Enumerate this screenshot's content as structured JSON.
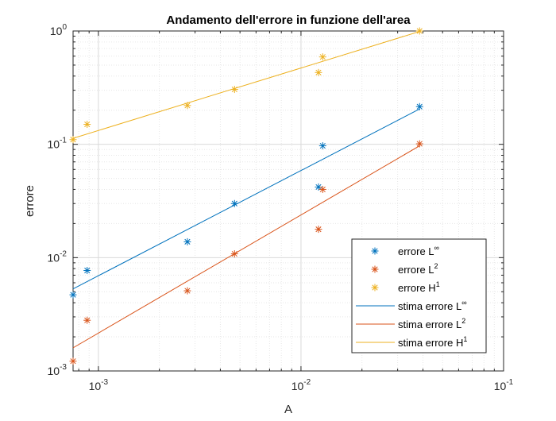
{
  "chart_data": {
    "type": "scatter",
    "title": "Andamento dell'errore in funzione dell'area",
    "xlabel": "A",
    "ylabel": "errore",
    "xscale": "log",
    "yscale": "log",
    "xlim": [
      0.00075,
      0.1
    ],
    "ylim": [
      0.001,
      1
    ],
    "grid": true,
    "minor_grid": true,
    "legend_position": "bottom-right",
    "x_ticks": [
      {
        "base": "10",
        "exp": "-3",
        "value": 0.001
      },
      {
        "base": "10",
        "exp": "-2",
        "value": 0.01
      },
      {
        "base": "10",
        "exp": "-1",
        "value": 0.1
      }
    ],
    "y_ticks": [
      {
        "base": "10",
        "exp": "-3",
        "value": 0.001
      },
      {
        "base": "10",
        "exp": "-2",
        "value": 0.01
      },
      {
        "base": "10",
        "exp": "-1",
        "value": 0.1
      },
      {
        "base": "10",
        "exp": "0",
        "value": 1
      }
    ],
    "series": [
      {
        "name_base": "errore L",
        "name_sup": "∞",
        "kind": "markers",
        "marker": "asterisk",
        "color": "#0072BD",
        "x": [
          0.00075,
          0.00088,
          0.00275,
          0.0047,
          0.0122,
          0.0128,
          0.0385
        ],
        "y": [
          0.0047,
          0.0077,
          0.0138,
          0.03,
          0.042,
          0.097,
          0.215
        ]
      },
      {
        "name_base": "errore L",
        "name_sup": "2",
        "kind": "markers",
        "marker": "asterisk",
        "color": "#D95319",
        "x": [
          0.00075,
          0.00088,
          0.00275,
          0.0047,
          0.0122,
          0.0128,
          0.0385
        ],
        "y": [
          0.00122,
          0.0028,
          0.0051,
          0.0108,
          0.0178,
          0.04,
          0.101
        ]
      },
      {
        "name_base": "errore H",
        "name_sup": "1",
        "kind": "markers",
        "marker": "asterisk",
        "color": "#EDB120",
        "x": [
          0.00075,
          0.00088,
          0.00275,
          0.0047,
          0.0122,
          0.0128,
          0.0385
        ],
        "y": [
          0.11,
          0.15,
          0.22,
          0.305,
          0.43,
          0.59,
          1.0
        ]
      },
      {
        "name_base": "stima errore L",
        "name_sup": "∞",
        "kind": "line",
        "color": "#0072BD",
        "x": [
          0.00075,
          0.0385
        ],
        "y": [
          0.0053,
          0.205
        ]
      },
      {
        "name_base": "stima errore L",
        "name_sup": "2",
        "kind": "line",
        "color": "#D95319",
        "x": [
          0.00075,
          0.0385
        ],
        "y": [
          0.0016,
          0.097
        ]
      },
      {
        "name_base": "stima errore H",
        "name_sup": "1",
        "kind": "line",
        "color": "#EDB120",
        "x": [
          0.00075,
          0.0385
        ],
        "y": [
          0.113,
          0.99
        ]
      }
    ]
  }
}
